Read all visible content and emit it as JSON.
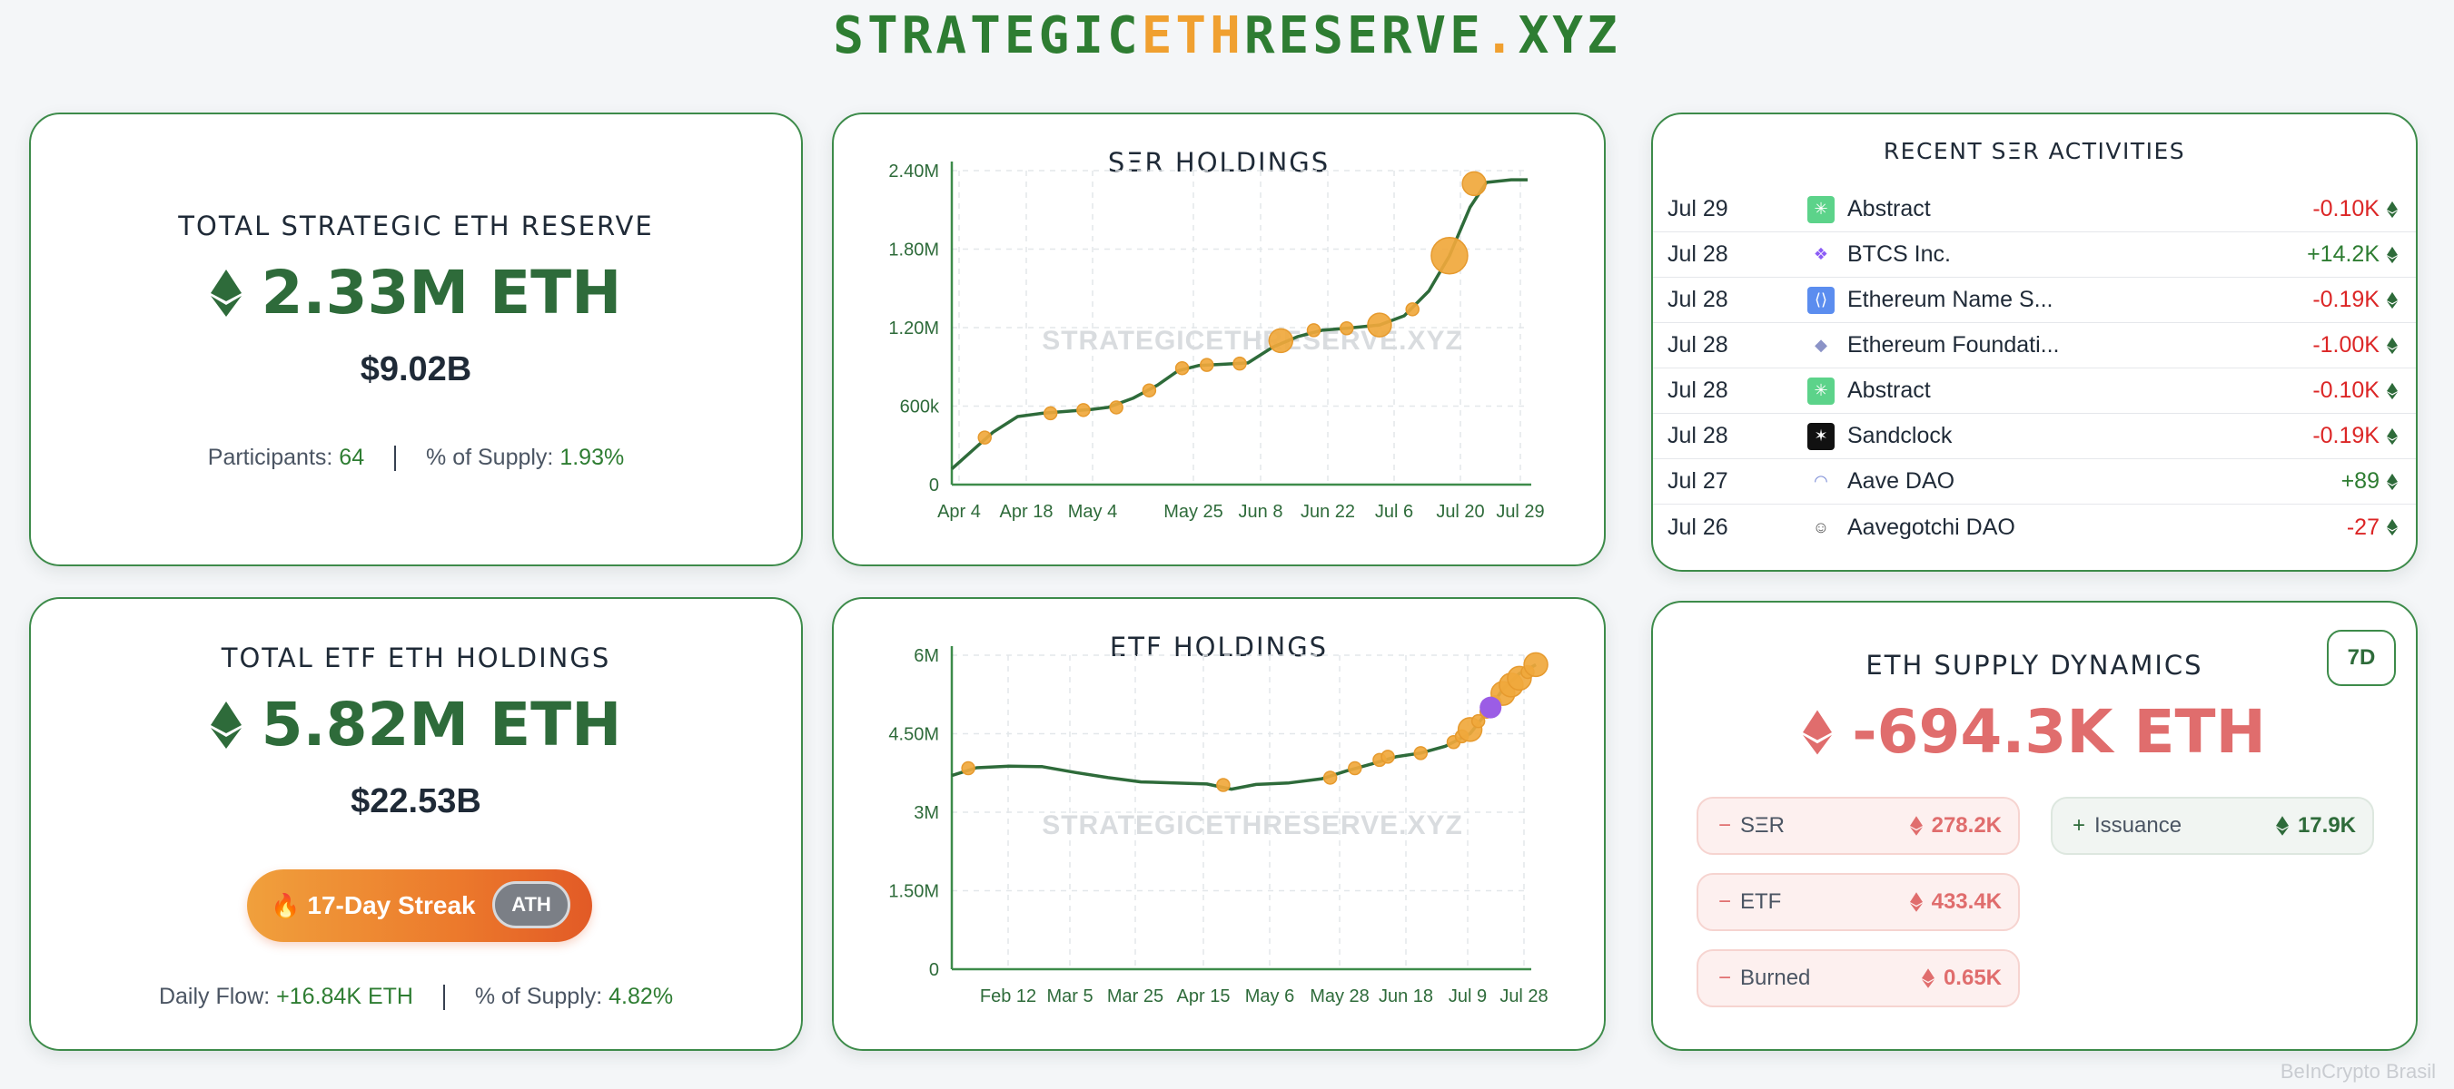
{
  "site": {
    "title_part1": "STRATEGIC",
    "title_part2": "ETH",
    "title_part3": "RESERVE",
    "title_part4": ".",
    "title_part5": "XYZ"
  },
  "colors": {
    "brand_green": "#2e7d32",
    "accent_orange": "#f0a030",
    "negative_red": "#dc2626",
    "etf_purple": "#9b5de5"
  },
  "reserve_card": {
    "title": "TOTAL STRATEGIC ETH RESERVE",
    "value": "2.33M ETH",
    "usd": "$9.02B",
    "participants_label": "Participants:",
    "participants_value": "64",
    "supply_label": "% of Supply:",
    "supply_value": "1.93%",
    "icon": "eth-icon"
  },
  "etf_card": {
    "title": "TOTAL ETF ETH HOLDINGS",
    "value": "5.82M ETH",
    "usd": "$22.53B",
    "streak_label": "17-Day Streak",
    "streak_icon": "fire-icon",
    "badge": "ATH",
    "flow_label": "Daily Flow:",
    "flow_value": "+16.84K ETH",
    "supply_label": "% of Supply:",
    "supply_value": "4.82%",
    "icon": "eth-icon"
  },
  "ser_chart": {
    "title": "SΞR HOLDINGS",
    "watermark": "STRATEGICETHRESERVE.XYZ"
  },
  "etf_chart": {
    "title": "ETF HOLDINGS",
    "watermark": "STRATEGICETHRESERVE.XYZ"
  },
  "chart_data": [
    {
      "type": "line",
      "title": "SΞR HOLDINGS",
      "x_ticks": [
        "Apr 4",
        "Apr 18",
        "May 4",
        "May 25",
        "Jun 8",
        "Jun 22",
        "Jul 6",
        "Jul 20",
        "Jul 29"
      ],
      "y_ticks": [
        "0",
        "600k",
        "1.20M",
        "1.80M",
        "2.40M"
      ],
      "ylim": [
        0,
        2400000
      ],
      "grid": true,
      "line": [
        [
          0,
          120000
        ],
        [
          5,
          260000
        ],
        [
          10,
          400000
        ],
        [
          16,
          520000
        ],
        [
          22,
          545000
        ],
        [
          28,
          560000
        ],
        [
          34,
          575000
        ],
        [
          38,
          590000
        ],
        [
          44,
          660000
        ],
        [
          50,
          760000
        ],
        [
          55,
          870000
        ],
        [
          60,
          910000
        ],
        [
          66,
          920000
        ],
        [
          72,
          930000
        ],
        [
          78,
          1050000
        ],
        [
          84,
          1130000
        ],
        [
          90,
          1180000
        ],
        [
          96,
          1195000
        ],
        [
          104,
          1220000
        ],
        [
          110,
          1290000
        ],
        [
          116,
          1480000
        ],
        [
          121,
          1750000
        ],
        [
          126,
          2120000
        ],
        [
          130,
          2310000
        ],
        [
          136,
          2330000
        ],
        [
          140,
          2330000
        ]
      ],
      "points": [
        [
          8,
          360000,
          1
        ],
        [
          24,
          545000,
          1
        ],
        [
          32,
          570000,
          1
        ],
        [
          40,
          590000,
          1
        ],
        [
          48,
          720000,
          1
        ],
        [
          56,
          890000,
          1
        ],
        [
          62,
          915000,
          1
        ],
        [
          70,
          925000,
          1
        ],
        [
          80,
          1100000,
          2
        ],
        [
          88,
          1180000,
          1
        ],
        [
          96,
          1195000,
          1
        ],
        [
          104,
          1220000,
          2
        ],
        [
          112,
          1340000,
          1
        ],
        [
          121,
          1750000,
          3
        ],
        [
          127,
          2300000,
          2
        ]
      ]
    },
    {
      "type": "line",
      "title": "ETF HOLDINGS",
      "x_ticks": [
        "Feb 12",
        "Mar 5",
        "Mar 25",
        "Apr 15",
        "May 6",
        "May 28",
        "Jun 18",
        "Jul 9",
        "Jul 28"
      ],
      "y_ticks": [
        "0",
        "1.50M",
        "3M",
        "4.50M",
        "6M"
      ],
      "ylim": [
        0,
        6000000
      ],
      "grid": true,
      "line": [
        [
          0,
          3700000
        ],
        [
          6,
          3850000
        ],
        [
          14,
          3880000
        ],
        [
          22,
          3870000
        ],
        [
          30,
          3760000
        ],
        [
          38,
          3660000
        ],
        [
          46,
          3580000
        ],
        [
          54,
          3560000
        ],
        [
          62,
          3540000
        ],
        [
          68,
          3440000
        ],
        [
          74,
          3530000
        ],
        [
          82,
          3560000
        ],
        [
          90,
          3640000
        ],
        [
          96,
          3790000
        ],
        [
          102,
          3920000
        ],
        [
          108,
          4060000
        ],
        [
          114,
          4130000
        ],
        [
          120,
          4260000
        ],
        [
          126,
          4500000
        ],
        [
          130,
          4900000
        ],
        [
          134,
          5350000
        ],
        [
          138,
          5650000
        ],
        [
          142,
          5820000
        ]
      ],
      "points": [
        [
          4,
          3840000,
          1
        ],
        [
          66,
          3520000,
          1
        ],
        [
          92,
          3660000,
          1
        ],
        [
          98,
          3840000,
          1
        ],
        [
          104,
          4000000,
          1
        ],
        [
          106,
          4060000,
          1
        ],
        [
          114,
          4130000,
          1
        ],
        [
          122,
          4340000,
          1
        ],
        [
          124,
          4450000,
          1
        ],
        [
          126,
          4580000,
          2
        ],
        [
          128,
          4740000,
          1
        ],
        [
          130,
          4920000,
          1
        ],
        [
          132,
          5100000,
          1
        ],
        [
          134,
          5270000,
          2
        ],
        [
          136,
          5430000,
          2
        ],
        [
          138,
          5560000,
          2
        ],
        [
          140,
          5680000,
          1
        ],
        [
          142,
          5820000,
          2
        ]
      ],
      "highlight": [
        [
          131,
          5000000,
          2
        ]
      ]
    }
  ],
  "activities": {
    "title": "RECENT SΞR ACTIVITIES",
    "rows": [
      {
        "date": "Jul 29",
        "name": "Abstract",
        "amount": "-0.10K",
        "sign": "neg",
        "icon": "abstract-icon"
      },
      {
        "date": "Jul 28",
        "name": "BTCS Inc.",
        "amount": "+14.2K",
        "sign": "pos",
        "icon": "btcs-icon"
      },
      {
        "date": "Jul 28",
        "name": "Ethereum Name S...",
        "amount": "-0.19K",
        "sign": "neg",
        "icon": "ens-icon"
      },
      {
        "date": "Jul 28",
        "name": "Ethereum Foundati...",
        "amount": "-1.00K",
        "sign": "neg",
        "icon": "ethereum-foundation-icon"
      },
      {
        "date": "Jul 28",
        "name": "Abstract",
        "amount": "-0.10K",
        "sign": "neg",
        "icon": "abstract-icon"
      },
      {
        "date": "Jul 28",
        "name": "Sandclock",
        "amount": "-0.19K",
        "sign": "neg",
        "icon": "sandclock-icon"
      },
      {
        "date": "Jul 27",
        "name": "Aave DAO",
        "amount": "+89",
        "sign": "pos",
        "icon": "aave-icon"
      },
      {
        "date": "Jul 26",
        "name": "Aavegotchi DAO",
        "amount": "-27",
        "sign": "neg",
        "icon": "aavegotchi-icon"
      }
    ]
  },
  "supply": {
    "title": "ETH SUPPLY DYNAMICS",
    "value": "-694.3K ETH",
    "range": "7D",
    "items": [
      {
        "sign": "−",
        "label": "SΞR",
        "value": "278.2K",
        "tone": "red"
      },
      {
        "sign": "−",
        "label": "ETF",
        "value": "433.4K",
        "tone": "red"
      },
      {
        "sign": "−",
        "label": "Burned",
        "value": "0.65K",
        "tone": "red"
      },
      {
        "sign": "+",
        "label": "Issuance",
        "value": "17.9K",
        "tone": "green"
      }
    ]
  },
  "footer": {
    "watermark": "BeInCrypto Brasil"
  }
}
